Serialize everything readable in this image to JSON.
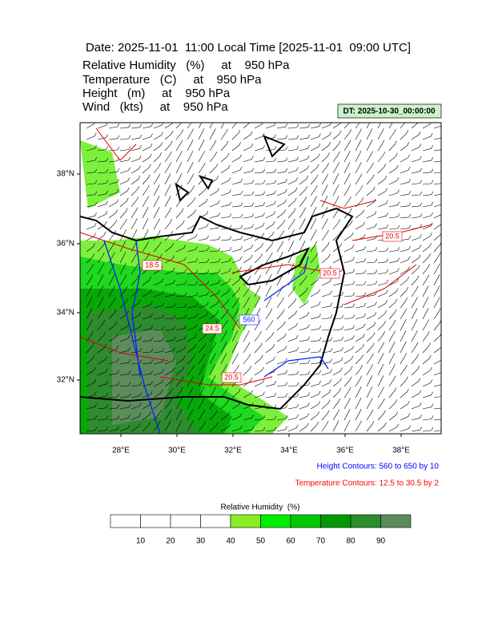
{
  "header": {
    "title": "Date: 2025-11-01  11:00 Local Time [2025-11-01  09:00 UTC]",
    "fields": [
      "Relative Humidity   (%)     at    950 hPa",
      "Temperature   (C)     at    950 hPa",
      "Height   (m)     at    950 hPa",
      "Wind   (kts)     at    950 hPa"
    ],
    "dt": "DT: 2025-10-30_00:00:00"
  },
  "map": {
    "lat_labels": [
      "38°N",
      "36°N",
      "34°N",
      "32°N"
    ],
    "lon_labels": [
      "28°E",
      "30°E",
      "32°E",
      "34°E",
      "36°E",
      "38°E"
    ],
    "contour_labels": [
      "18.5",
      "24.5",
      "560",
      "20.5",
      "20.5",
      "20.5"
    ]
  },
  "notes": {
    "height": "Height Contours: 560 to 650 by 10",
    "temperature": "Temperature Contours: 12.5 to 30.5 by 2"
  },
  "colorbar": {
    "title": "Relative Humidity  (%)",
    "labels": [
      "10",
      "20",
      "30",
      "40",
      "50",
      "60",
      "70",
      "80",
      "90"
    ]
  }
}
